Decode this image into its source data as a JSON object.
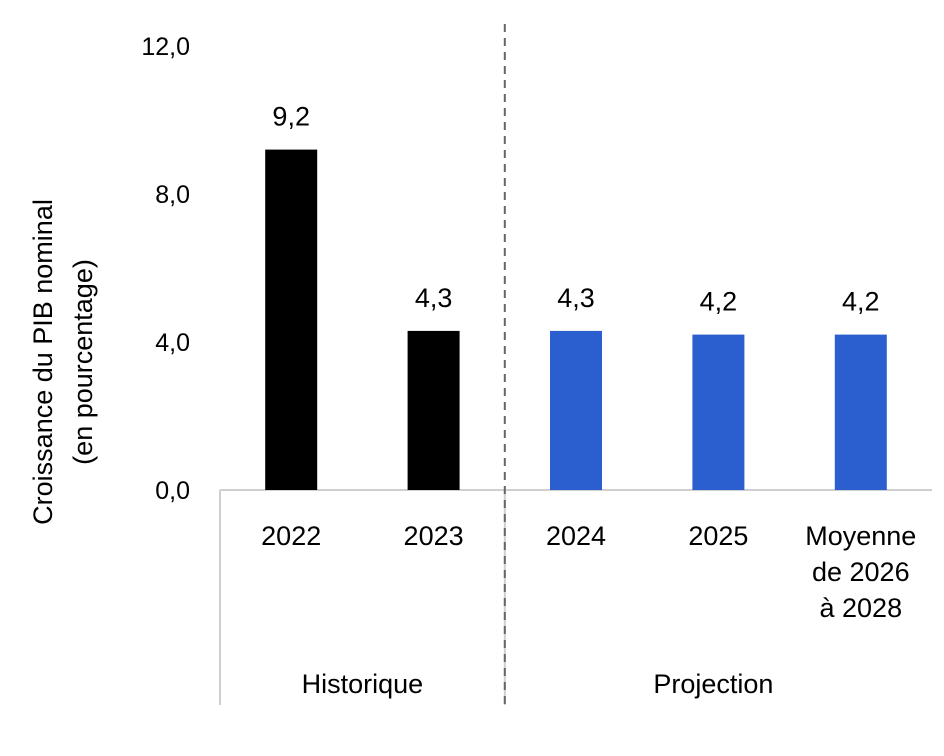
{
  "chart_data": {
    "type": "bar",
    "ylabel": [
      "Croissance du PIB nominal",
      "(en pourcentage)"
    ],
    "xlabel": "",
    "ylim": [
      0,
      12
    ],
    "yticks": [
      "0,0",
      "4,0",
      "8,0",
      "12,0"
    ],
    "yticks_values": [
      0,
      4,
      8,
      12
    ],
    "categories": [
      {
        "label": [
          "2022"
        ],
        "value": 9.2,
        "value_label": "9,2",
        "group": "Historique"
      },
      {
        "label": [
          "2023"
        ],
        "value": 4.3,
        "value_label": "4,3",
        "group": "Historique"
      },
      {
        "label": [
          "2024"
        ],
        "value": 4.3,
        "value_label": "4,3",
        "group": "Projection"
      },
      {
        "label": [
          "2025"
        ],
        "value": 4.2,
        "value_label": "4,2",
        "group": "Projection"
      },
      {
        "label": [
          "Moyenne",
          "de 2026",
          "à 2028"
        ],
        "value": 4.2,
        "value_label": "4,2",
        "group": "Projection"
      }
    ],
    "groups": [
      "Historique",
      "Projection"
    ],
    "colors": {
      "Historique": "#000000",
      "Projection": "#2b5fd0"
    },
    "grid": false,
    "legend": "none",
    "divider": "dashed line between Historique and Projection"
  }
}
